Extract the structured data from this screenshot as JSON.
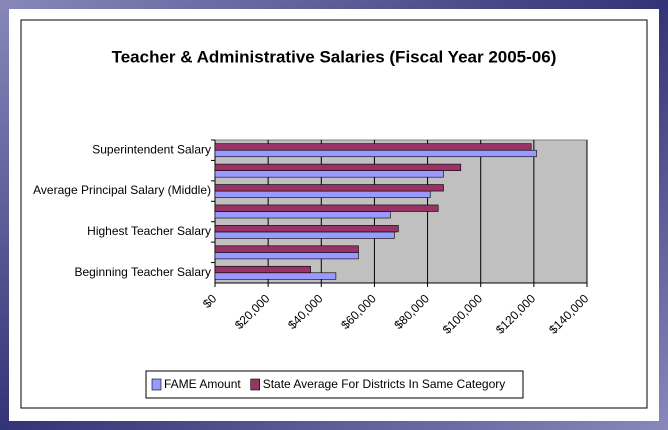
{
  "chart_data": {
    "type": "hbar",
    "title": "Teacher & Administrative Salaries (Fiscal Year 2005-06)",
    "categories": [
      "Superintendent Salary",
      null,
      "Average Principal Salary (Middle)",
      null,
      "Highest Teacher Salary",
      null,
      "Beginning Teacher Salary"
    ],
    "series": [
      {
        "name": "FAME Amount",
        "color": "#9999ff",
        "values": [
          121000,
          86000,
          81000,
          66000,
          67500,
          54000,
          45500
        ]
      },
      {
        "name": "State Average For Districts In Same Category",
        "color": "#993366",
        "values": [
          119000,
          92500,
          86000,
          84000,
          69000,
          54000,
          36000
        ]
      }
    ],
    "xlim": [
      0,
      140000
    ],
    "xticks": [
      {
        "value": 0,
        "label": "$0"
      },
      {
        "value": 20000,
        "label": "$20,000"
      },
      {
        "value": 40000,
        "label": "$40,000"
      },
      {
        "value": 60000,
        "label": "$60,000"
      },
      {
        "value": 80000,
        "label": "$80,000"
      },
      {
        "value": 100000,
        "label": "$100,000"
      },
      {
        "value": 120000,
        "label": "$120,000"
      },
      {
        "value": 140000,
        "label": "$140,000"
      }
    ],
    "grid": true,
    "legend": "bottom"
  }
}
